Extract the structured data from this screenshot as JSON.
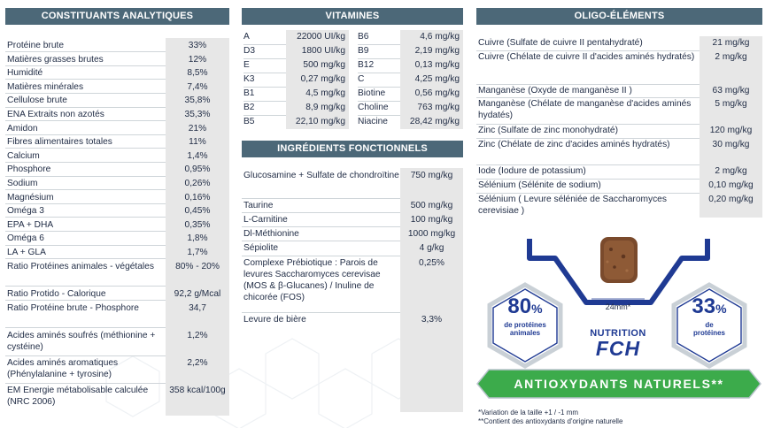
{
  "analytical": {
    "title": "CONSTITUANTS ANALYTIQUES",
    "rows": [
      {
        "label": "Protéine brute",
        "value": "33%"
      },
      {
        "label": "Matières grasses brutes",
        "value": "12%"
      },
      {
        "label": "Humidité",
        "value": "8,5%"
      },
      {
        "label": "Matières minérales",
        "value": "7,4%"
      },
      {
        "label": "Cellulose brute",
        "value": "35,8%"
      },
      {
        "label": "ENA Extraits non azotés",
        "value": "35,3%"
      },
      {
        "label": "Amidon",
        "value": "21%"
      },
      {
        "label": "Fibres alimentaires totales",
        "value": "11%"
      },
      {
        "label": "Calcium",
        "value": "1,4%"
      },
      {
        "label": "Phosphore",
        "value": "0,95%"
      },
      {
        "label": "Sodium",
        "value": "0,26%"
      },
      {
        "label": "Magnésium",
        "value": "0,16%"
      },
      {
        "label": "Oméga 3",
        "value": "0,45%"
      },
      {
        "label": "EPA + DHA",
        "value": "0,35%"
      },
      {
        "label": "Oméga 6",
        "value": "1,8%"
      },
      {
        "label": "LA + GLA",
        "value": "1,7%"
      },
      {
        "label": "Ratio Protéines animales - végétales",
        "value": "80% - 20%"
      },
      {
        "label": "Ratio Protido - Calorique",
        "value": "92,2 g/Mcal"
      },
      {
        "label": "Ratio Protéine brute - Phosphore",
        "value": "34,7"
      },
      {
        "label": "Acides aminés soufrés (méthionine + cystéine)",
        "value": "1,2%"
      },
      {
        "label": "Acides aminés aromatiques (Phénylalanine + tyrosine)",
        "value": "2,2%"
      },
      {
        "label": "EM Energie métabolisable calculée (NRC 2006)",
        "value": "358 kcal/100g"
      }
    ]
  },
  "vitamins": {
    "title": "VITAMINES",
    "left": [
      {
        "label": "A",
        "value": "22000 UI/kg"
      },
      {
        "label": "D3",
        "value": "1800 UI/kg"
      },
      {
        "label": "E",
        "value": "500 mg/kg"
      },
      {
        "label": "K3",
        "value": "0,27 mg/kg"
      },
      {
        "label": "B1",
        "value": "4,5 mg/kg"
      },
      {
        "label": "B2",
        "value": "8,9 mg/kg"
      },
      {
        "label": "B5",
        "value": "22,10 mg/kg"
      }
    ],
    "right": [
      {
        "label": "B6",
        "value": "4,6 mg/kg"
      },
      {
        "label": "B9",
        "value": "2,19 mg/kg"
      },
      {
        "label": "B12",
        "value": "0,13 mg/kg"
      },
      {
        "label": "C",
        "value": "4,25 mg/kg"
      },
      {
        "label": "Biotine",
        "value": "0,56 mg/kg"
      },
      {
        "label": "Choline",
        "value": "763 mg/kg"
      },
      {
        "label": "Niacine",
        "value": "28,42 mg/kg"
      }
    ]
  },
  "functional": {
    "title": "INGRÉDIENTS FONCTIONNELS",
    "rows": [
      {
        "label": "Glucosamine + Sulfate de chondroïtine",
        "value": "750 mg/kg"
      },
      {
        "label": "Taurine",
        "value": "500 mg/kg"
      },
      {
        "label": "L-Carnitine",
        "value": "100 mg/kg"
      },
      {
        "label": "Dl-Méthionine",
        "value": "1000 mg/kg"
      },
      {
        "label": "Sépiolite",
        "value": "4 g/kg"
      },
      {
        "label": "Complexe Prébiotique : Parois de levures Saccharomyces cerevisae (MOS &  β-Glucanes) / Inuline de chicorée (FOS)",
        "value": "0,25%"
      },
      {
        "label": "Levure de bière",
        "value": "3,3%"
      }
    ]
  },
  "trace": {
    "title": "OLIGO-ÉLÉMENTS",
    "rows": [
      {
        "label": "Cuivre (Sulfate de cuivre II pentahydraté)",
        "value": "21 mg/kg"
      },
      {
        "label": "Cuivre (Chélate de cuivre II d'acides aminés hydratés)",
        "value": "2 mg/kg"
      },
      {
        "label": "Manganèse (Oxyde de manganèse II )",
        "value": "63 mg/kg"
      },
      {
        "label": "Manganèse (Chélate de manganèse d'acides aminés hydatés)",
        "value": "5 mg/kg"
      },
      {
        "label": "Zinc (Sulfate de zinc monohydraté)",
        "value": "120 mg/kg"
      },
      {
        "label": "Zinc (Chélate de zinc d'acides aminés hydratés)",
        "value": "30 mg/kg"
      },
      {
        "label": "Iode (Iodure de potassium)",
        "value": "2 mg/kg"
      },
      {
        "label": "Sélénium (Sélénite de sodium)",
        "value": "0,10 mg/kg"
      },
      {
        "label": "Sélénium ( Levure séléniée de Saccharomyces cerevisiae )",
        "value": "0,20 mg/kg"
      }
    ]
  },
  "badges": {
    "animal_pct": "80",
    "animal_sign": "%",
    "animal_line1": "de protéines",
    "animal_line2": "animales",
    "total_pct": "33",
    "total_sign": "%",
    "total_line1": "de",
    "total_line2": "protéines",
    "size": "24mm*",
    "brand_top": "NUTRITION",
    "brand_main": "FCH",
    "antioxidants": "ANTIOXYDANTS NATURELS**"
  },
  "footnotes": {
    "note1": "*Variation de la taille +1 / -1 mm",
    "note2": "**Contient des antioxydants d'origine naturelle"
  },
  "colors": {
    "header": "#4c6878",
    "navy": "#1f3a93",
    "green": "#3cab4b",
    "shade": "#e7e7e7"
  }
}
